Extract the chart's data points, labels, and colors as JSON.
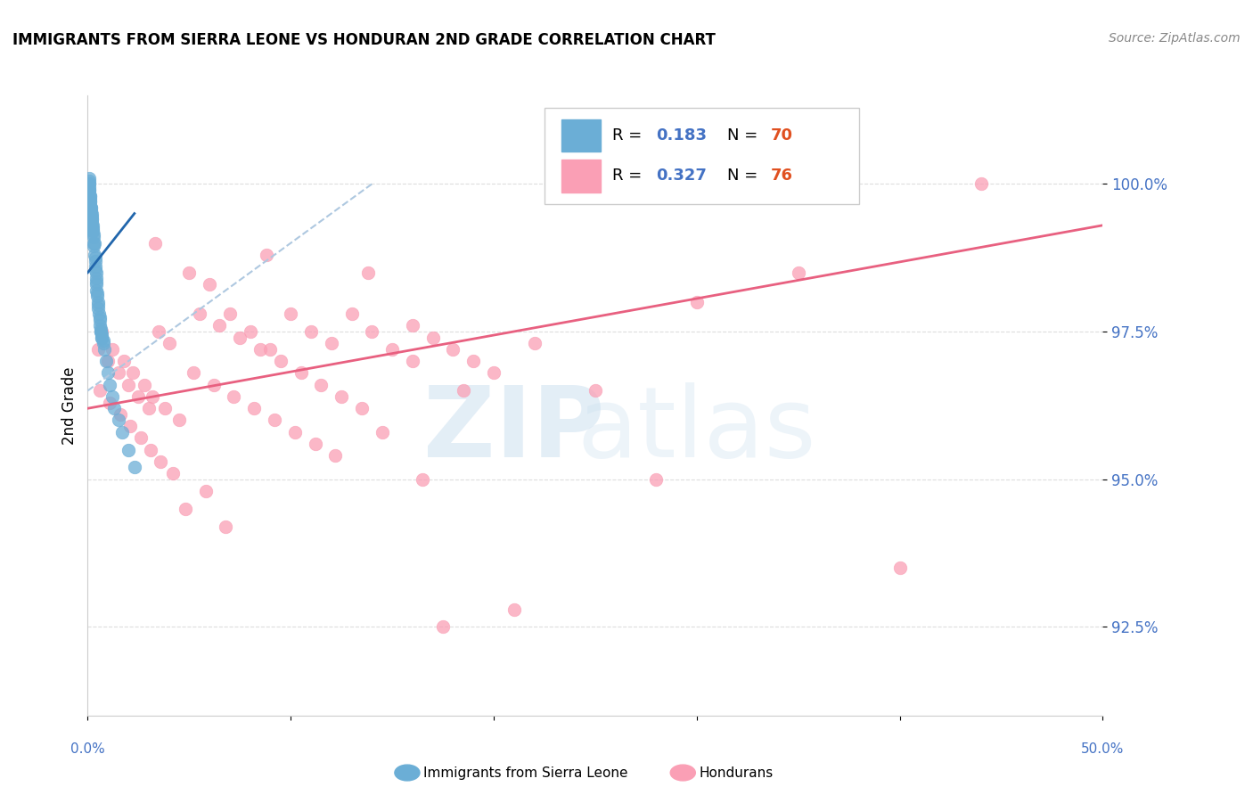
{
  "title": "IMMIGRANTS FROM SIERRA LEONE VS HONDURAN 2ND GRADE CORRELATION CHART",
  "source": "Source: ZipAtlas.com",
  "ylabel": "2nd Grade",
  "legend_label1": "Immigrants from Sierra Leone",
  "legend_label2": "Hondurans",
  "xlim": [
    0.0,
    50.0
  ],
  "ylim": [
    91.0,
    101.5
  ],
  "yticks": [
    92.5,
    95.0,
    97.5,
    100.0
  ],
  "ytick_labels": [
    "92.5%",
    "95.0%",
    "97.5%",
    "100.0%"
  ],
  "color_blue": "#6baed6",
  "color_pink": "#fa9fb5",
  "color_blue_line": "#2166ac",
  "color_pink_line": "#e86080",
  "color_dashed": "#aec8e0",
  "blue_r_val": "0.183",
  "blue_n_val": "70",
  "pink_r_val": "0.327",
  "pink_n_val": "76",
  "blue_scatter_x": [
    0.05,
    0.08,
    0.1,
    0.12,
    0.15,
    0.18,
    0.2,
    0.22,
    0.25,
    0.28,
    0.3,
    0.35,
    0.38,
    0.4,
    0.42,
    0.5,
    0.55,
    0.6,
    0.65,
    0.7,
    0.8,
    0.9,
    1.0,
    1.1,
    1.2,
    1.3,
    1.5,
    1.7,
    2.0,
    2.3,
    0.05,
    0.07,
    0.09,
    0.11,
    0.13,
    0.16,
    0.19,
    0.21,
    0.24,
    0.27,
    0.31,
    0.36,
    0.39,
    0.41,
    0.45,
    0.52,
    0.58,
    0.63,
    0.68,
    0.75,
    0.05,
    0.06,
    0.08,
    0.1,
    0.12,
    0.14,
    0.17,
    0.2,
    0.23,
    0.26,
    0.32,
    0.37,
    0.4,
    0.43,
    0.47,
    0.53,
    0.59,
    0.64,
    0.69,
    0.76
  ],
  "blue_scatter_y": [
    100.0,
    99.9,
    99.8,
    99.7,
    99.6,
    99.5,
    99.4,
    99.3,
    99.2,
    99.1,
    99.0,
    98.8,
    98.6,
    98.4,
    98.2,
    98.0,
    97.8,
    97.6,
    97.5,
    97.4,
    97.2,
    97.0,
    96.8,
    96.6,
    96.4,
    96.2,
    96.0,
    95.8,
    95.5,
    95.2,
    100.1,
    99.95,
    99.85,
    99.75,
    99.65,
    99.55,
    99.45,
    99.35,
    99.25,
    99.15,
    98.95,
    98.75,
    98.55,
    98.35,
    98.15,
    97.95,
    97.75,
    97.55,
    97.45,
    97.35,
    100.05,
    100.0,
    99.9,
    99.8,
    99.7,
    99.6,
    99.5,
    99.4,
    99.3,
    99.2,
    99.0,
    98.7,
    98.5,
    98.3,
    98.1,
    97.9,
    97.7,
    97.5,
    97.4,
    97.3
  ],
  "pink_scatter_x": [
    0.5,
    1.0,
    1.5,
    2.0,
    2.5,
    3.0,
    3.5,
    4.0,
    5.0,
    6.0,
    7.0,
    8.0,
    9.0,
    10.0,
    11.0,
    12.0,
    13.0,
    14.0,
    15.0,
    16.0,
    17.0,
    18.0,
    19.0,
    20.0,
    22.0,
    25.0,
    28.0,
    30.0,
    35.0,
    40.0,
    0.7,
    1.2,
    1.8,
    2.2,
    2.8,
    3.2,
    3.8,
    4.5,
    5.5,
    6.5,
    7.5,
    8.5,
    9.5,
    10.5,
    11.5,
    12.5,
    13.5,
    14.5,
    16.0,
    18.5,
    0.6,
    1.1,
    1.6,
    2.1,
    2.6,
    3.1,
    3.6,
    4.2,
    5.2,
    6.2,
    7.2,
    8.2,
    9.2,
    10.2,
    11.2,
    12.2,
    4.8,
    16.5,
    6.8,
    5.8,
    3.3,
    8.8,
    13.8,
    17.5,
    21.0,
    44.0
  ],
  "pink_scatter_y": [
    97.2,
    97.0,
    96.8,
    96.6,
    96.4,
    96.2,
    97.5,
    97.3,
    98.5,
    98.3,
    97.8,
    97.5,
    97.2,
    97.8,
    97.5,
    97.3,
    97.8,
    97.5,
    97.2,
    97.6,
    97.4,
    97.2,
    97.0,
    96.8,
    97.3,
    96.5,
    95.0,
    98.0,
    98.5,
    93.5,
    97.5,
    97.2,
    97.0,
    96.8,
    96.6,
    96.4,
    96.2,
    96.0,
    97.8,
    97.6,
    97.4,
    97.2,
    97.0,
    96.8,
    96.6,
    96.4,
    96.2,
    95.8,
    97.0,
    96.5,
    96.5,
    96.3,
    96.1,
    95.9,
    95.7,
    95.5,
    95.3,
    95.1,
    96.8,
    96.6,
    96.4,
    96.2,
    96.0,
    95.8,
    95.6,
    95.4,
    94.5,
    95.0,
    94.2,
    94.8,
    99.0,
    98.8,
    98.5,
    92.5,
    92.8,
    100.0
  ],
  "blue_line_x": [
    0.0,
    2.3
  ],
  "blue_line_y": [
    98.5,
    99.5
  ],
  "pink_line_x": [
    0.0,
    50.0
  ],
  "pink_line_y": [
    96.2,
    99.3
  ],
  "dashed_line_x": [
    0.0,
    14.0
  ],
  "dashed_line_y": [
    96.5,
    100.0
  ]
}
